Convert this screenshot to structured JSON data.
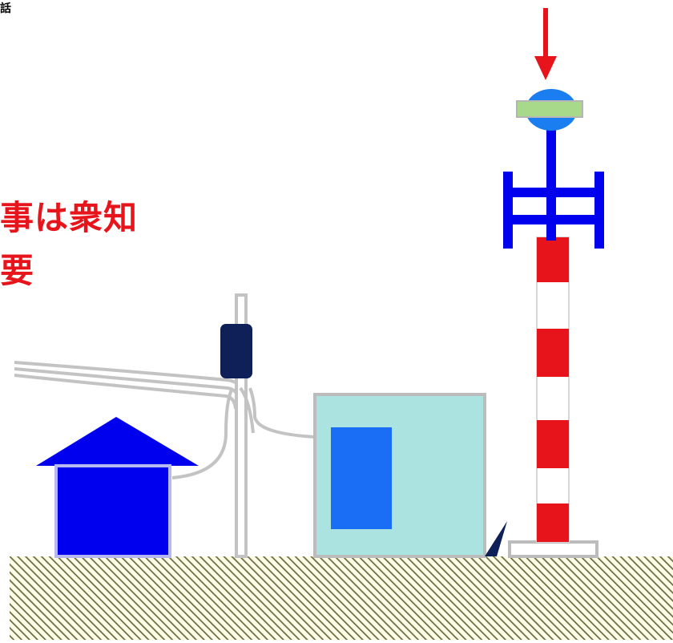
{
  "labels": {
    "corner": "話",
    "red_line1": "事は衆知",
    "red_line2": "要"
  },
  "colors": {
    "red": "#e8141b",
    "blue": "#0000ee",
    "mid_blue": "#1a6ef5",
    "navy": "#0e2057",
    "light_teal": "#abe3e0",
    "cable_gray": "#c0c0c0",
    "ground_hatch": "#6b6b3f",
    "ground_bg": "#fefde8",
    "sensor_green": "#a8d88a",
    "sensor_blue": "#1b7ef0"
  }
}
